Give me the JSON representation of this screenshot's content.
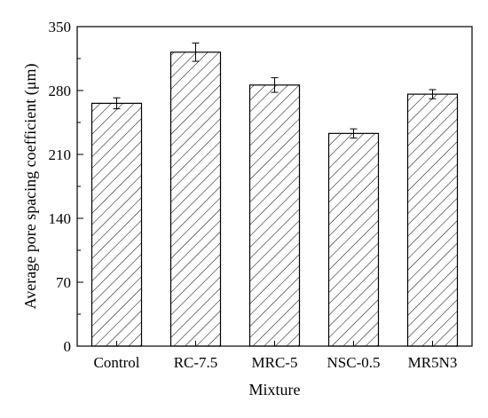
{
  "chart_data": {
    "type": "bar",
    "title": "",
    "xlabel": "Mixture",
    "ylabel": "Average pore spacing coefficient (μm)",
    "categories": [
      "Control",
      "RC-7.5",
      "MRC-5",
      "NSC-0.5",
      "MR5N3"
    ],
    "values": [
      266,
      322,
      286,
      233,
      276
    ],
    "errors": [
      6,
      10,
      8,
      5,
      5
    ],
    "ylim": [
      0,
      350
    ],
    "yticks": [
      "0",
      "70",
      "140",
      "210",
      "280",
      "350"
    ],
    "ytick_values": [
      0,
      70,
      140,
      210,
      280,
      350
    ],
    "minor_yticks": [
      35,
      105,
      175,
      245,
      315
    ],
    "bar_fill": "hatched",
    "bar_color": "#000000",
    "grid": false,
    "legend": "none"
  }
}
